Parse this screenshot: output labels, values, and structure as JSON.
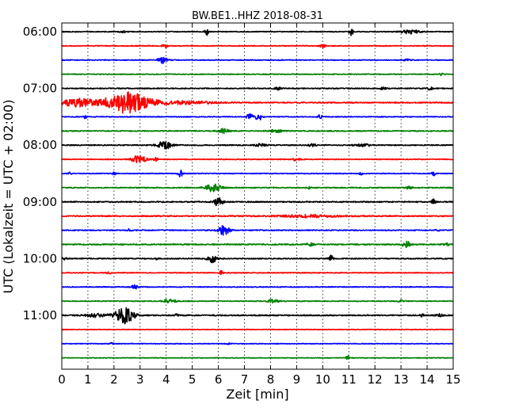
{
  "chart_data": {
    "type": "line",
    "title": "BW.BE1..HHZ 2018-08-31",
    "xlabel": "Zeit  [min]",
    "ylabel": "UTC (Lokalzeit = UTC + 02:00)",
    "xlim": [
      0,
      15
    ],
    "x_ticks": [
      "0",
      "1",
      "2",
      "3",
      "4",
      "5",
      "6",
      "7",
      "8",
      "9",
      "10",
      "11",
      "12",
      "13",
      "14",
      "15"
    ],
    "y_tick_labels": [
      "06:00",
      "07:00",
      "08:00",
      "09:00",
      "10:00",
      "11:00"
    ],
    "y_tick_rows": [
      0,
      4,
      8,
      12,
      16,
      20
    ],
    "vertical_grid": "dotted",
    "colors": [
      "#000000",
      "#ff0000",
      "#0000ff",
      "#008000"
    ],
    "trace_rows": 24,
    "traces": [
      {
        "label": "06:00",
        "color": "#000000",
        "noise": 0.5,
        "events": [
          [
            2.35,
            1.2,
            0.1
          ],
          [
            5.55,
            5,
            0.05
          ],
          [
            11.1,
            5,
            0.05
          ],
          [
            13.35,
            2.5,
            0.25
          ]
        ]
      },
      {
        "label": "06:15",
        "color": "#ff0000",
        "noise": 0.5,
        "events": [
          [
            3.95,
            2,
            0.08
          ],
          [
            10.0,
            2,
            0.08
          ]
        ]
      },
      {
        "label": "06:30",
        "color": "#0000ff",
        "noise": 0.5,
        "events": [
          [
            3.85,
            4.5,
            0.12
          ],
          [
            13.25,
            1,
            0.1
          ]
        ]
      },
      {
        "label": "06:45",
        "color": "#008000",
        "noise": 0.5,
        "events": [
          [
            14.55,
            2,
            0.05
          ]
        ]
      },
      {
        "label": "07:00",
        "color": "#000000",
        "noise": 0.6,
        "events": [
          [
            8.3,
            1.5,
            0.1
          ],
          [
            12.3,
            1.2,
            0.1
          ],
          [
            14.1,
            1.5,
            0.1
          ]
        ]
      },
      {
        "label": "07:15",
        "color": "#ff0000",
        "noise": 0.7,
        "events": [
          [
            0.6,
            5,
            0.45
          ],
          [
            2.5,
            13,
            0.6
          ],
          [
            4.6,
            2,
            0.8
          ]
        ]
      },
      {
        "label": "07:30",
        "color": "#0000ff",
        "noise": 0.5,
        "events": [
          [
            0.9,
            2,
            0.05
          ],
          [
            7.2,
            4.5,
            0.08
          ],
          [
            7.55,
            6,
            0.08
          ],
          [
            9.9,
            2.5,
            0.06
          ]
        ]
      },
      {
        "label": "07:45",
        "color": "#008000",
        "noise": 0.6,
        "events": [
          [
            6.2,
            2.5,
            0.15
          ],
          [
            8.2,
            1.5,
            0.2
          ]
        ]
      },
      {
        "label": "08:00",
        "color": "#000000",
        "noise": 0.6,
        "events": [
          [
            3.95,
            5,
            0.2
          ],
          [
            7.6,
            1.5,
            0.15
          ],
          [
            9.6,
            1.5,
            0.1
          ],
          [
            11.5,
            1.5,
            0.2
          ]
        ]
      },
      {
        "label": "08:15",
        "color": "#ff0000",
        "noise": 0.5,
        "events": [
          [
            2.95,
            4.5,
            0.2
          ],
          [
            3.6,
            2,
            0.05
          ],
          [
            8.9,
            1.5,
            0.15
          ]
        ]
      },
      {
        "label": "08:30",
        "color": "#0000ff",
        "noise": 0.5,
        "events": [
          [
            0.3,
            1.5,
            0.05
          ],
          [
            2.0,
            1.5,
            0.05
          ],
          [
            4.55,
            5,
            0.06
          ],
          [
            11.45,
            2,
            0.05
          ],
          [
            14.25,
            2.5,
            0.05
          ]
        ]
      },
      {
        "label": "08:45",
        "color": "#008000",
        "noise": 0.6,
        "events": [
          [
            5.8,
            5,
            0.2
          ],
          [
            9.5,
            1.5,
            0.05
          ],
          [
            13.3,
            1.5,
            0.1
          ]
        ]
      },
      {
        "label": "09:00",
        "color": "#000000",
        "noise": 0.7,
        "events": [
          [
            6.0,
            5,
            0.12
          ],
          [
            14.25,
            3.5,
            0.05
          ]
        ]
      },
      {
        "label": "09:15",
        "color": "#ff0000",
        "noise": 0.7,
        "events": [
          [
            9.5,
            1.5,
            0.8
          ]
        ]
      },
      {
        "label": "09:30",
        "color": "#0000ff",
        "noise": 0.6,
        "events": [
          [
            2.6,
            2,
            0.05
          ],
          [
            6.2,
            6,
            0.15
          ],
          [
            14.4,
            1.5,
            0.05
          ]
        ]
      },
      {
        "label": "09:45",
        "color": "#008000",
        "noise": 0.7,
        "events": [
          [
            9.5,
            2,
            0.1
          ],
          [
            13.2,
            4,
            0.1
          ],
          [
            14.8,
            1.5,
            0.1
          ]
        ]
      },
      {
        "label": "10:00",
        "color": "#000000",
        "noise": 0.6,
        "events": [
          [
            0.1,
            2,
            0.05
          ],
          [
            3.65,
            1.2,
            0.05
          ],
          [
            5.75,
            5,
            0.12
          ],
          [
            10.3,
            4.5,
            0.06
          ]
        ]
      },
      {
        "label": "10:15",
        "color": "#ff0000",
        "noise": 0.5,
        "events": [
          [
            1.8,
            2,
            0.05
          ],
          [
            6.1,
            2.5,
            0.05
          ]
        ]
      },
      {
        "label": "10:30",
        "color": "#0000ff",
        "noise": 0.5,
        "events": [
          [
            2.8,
            2.5,
            0.1
          ]
        ]
      },
      {
        "label": "10:45",
        "color": "#008000",
        "noise": 0.5,
        "events": [
          [
            4.1,
            2,
            0.2
          ],
          [
            8.1,
            2,
            0.15
          ],
          [
            13.0,
            1.2,
            0.1
          ]
        ]
      },
      {
        "label": "11:00",
        "color": "#000000",
        "noise": 0.7,
        "events": [
          [
            1.3,
            2,
            0.3
          ],
          [
            2.4,
            10,
            0.25
          ],
          [
            4.4,
            2.5,
            0.05
          ],
          [
            13.8,
            2,
            0.05
          ],
          [
            14.5,
            1.5,
            0.1
          ]
        ]
      },
      {
        "label": "11:15",
        "color": "#ff0000",
        "noise": 0.4,
        "events": []
      },
      {
        "label": "11:30",
        "color": "#0000ff",
        "noise": 0.4,
        "events": [
          [
            1.9,
            1.2,
            0.05
          ],
          [
            6.4,
            1,
            0.05
          ]
        ]
      },
      {
        "label": "11:45",
        "color": "#008000",
        "noise": 0.4,
        "events": [
          [
            10.95,
            3,
            0.05
          ]
        ]
      }
    ]
  }
}
